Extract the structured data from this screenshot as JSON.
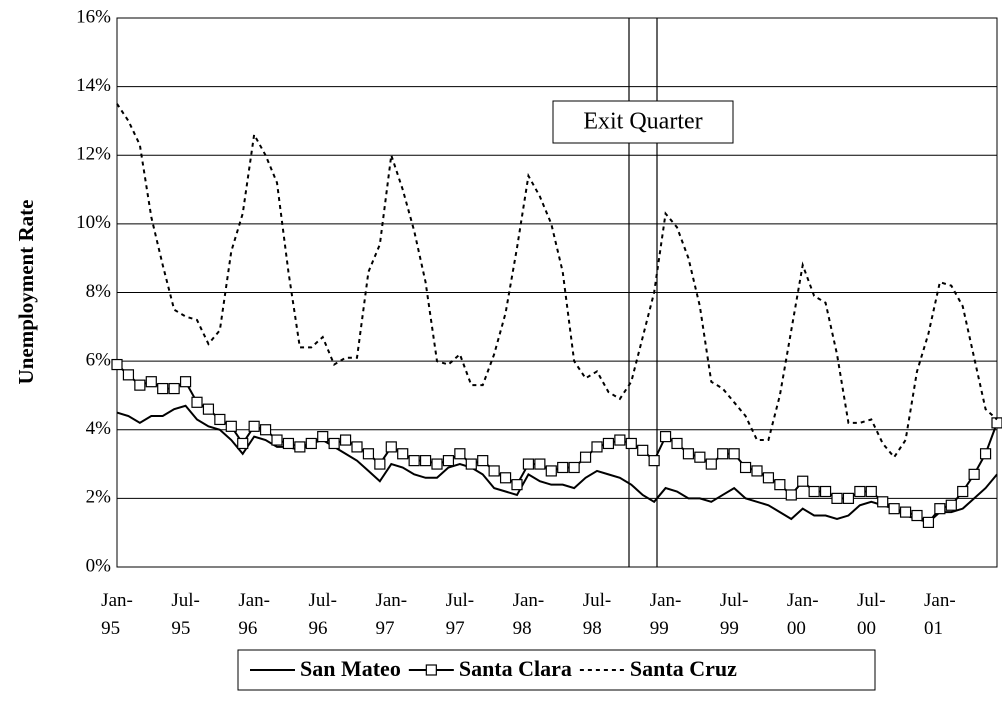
{
  "chart_data": {
    "type": "line",
    "y_label": "Unemployment Rate",
    "annotation": "Exit Quarter",
    "categories": [
      "Jan-95",
      null,
      null,
      null,
      null,
      null,
      "Jul-95",
      null,
      null,
      null,
      null,
      null,
      "Jan-96",
      null,
      null,
      null,
      null,
      null,
      "Jul-96",
      null,
      null,
      null,
      null,
      null,
      "Jan-97",
      null,
      null,
      null,
      null,
      null,
      "Jul-97",
      null,
      null,
      null,
      null,
      null,
      "Jan-98",
      null,
      null,
      null,
      null,
      null,
      "Jul-98",
      null,
      null,
      null,
      null,
      null,
      "Jan-99",
      null,
      null,
      null,
      null,
      null,
      "Jul-99",
      null,
      null,
      null,
      null,
      null,
      "Jan-00",
      null,
      null,
      null,
      null,
      null,
      "Jul-00",
      null,
      null,
      null,
      null,
      null,
      "Jan-01",
      null,
      null,
      null,
      null,
      null
    ],
    "ylim": [
      0,
      16
    ],
    "yticks": [
      {
        "value": 0,
        "label": "0%"
      },
      {
        "value": 2,
        "label": "2%"
      },
      {
        "value": 4,
        "label": "4%"
      },
      {
        "value": 6,
        "label": "6%"
      },
      {
        "value": 8,
        "label": "8%"
      },
      {
        "value": 10,
        "label": "10%"
      },
      {
        "value": 12,
        "label": "12%"
      },
      {
        "value": 14,
        "label": "14%"
      },
      {
        "value": 16,
        "label": "16%"
      }
    ],
    "grid": true,
    "legend": "bottom",
    "series": [
      {
        "name": "San Mateo",
        "color": "#000000",
        "dash": "solid",
        "marker": "none",
        "values": [
          4.5,
          4.4,
          4.2,
          4.4,
          4.4,
          4.6,
          4.7,
          4.3,
          4.1,
          4.0,
          3.7,
          3.3,
          3.8,
          3.7,
          3.5,
          3.5,
          3.4,
          3.6,
          3.7,
          3.5,
          3.3,
          3.1,
          2.8,
          2.5,
          3.0,
          2.9,
          2.7,
          2.6,
          2.6,
          2.9,
          3.0,
          2.9,
          2.7,
          2.3,
          2.2,
          2.1,
          2.7,
          2.5,
          2.4,
          2.4,
          2.3,
          2.6,
          2.8,
          2.7,
          2.6,
          2.4,
          2.1,
          1.9,
          2.3,
          2.2,
          2.0,
          2.0,
          1.9,
          2.1,
          2.3,
          2.0,
          1.9,
          1.8,
          1.6,
          1.4,
          1.7,
          1.5,
          1.5,
          1.4,
          1.5,
          1.8,
          1.9,
          1.8,
          1.7,
          1.5,
          1.4,
          1.3,
          1.6,
          1.6,
          1.7,
          2.0,
          2.3,
          2.7
        ]
      },
      {
        "name": "Santa Clara",
        "color": "#000000",
        "dash": "solid",
        "marker": "square",
        "values": [
          5.9,
          5.6,
          5.3,
          5.4,
          5.2,
          5.2,
          5.4,
          4.8,
          4.6,
          4.3,
          4.1,
          3.6,
          4.1,
          4.0,
          3.7,
          3.6,
          3.5,
          3.6,
          3.8,
          3.6,
          3.7,
          3.5,
          3.3,
          3.0,
          3.5,
          3.3,
          3.1,
          3.1,
          3.0,
          3.1,
          3.3,
          3.0,
          3.1,
          2.8,
          2.6,
          2.4,
          3.0,
          3.0,
          2.8,
          2.9,
          2.9,
          3.2,
          3.5,
          3.6,
          3.7,
          3.6,
          3.4,
          3.1,
          3.8,
          3.6,
          3.3,
          3.2,
          3.0,
          3.3,
          3.3,
          2.9,
          2.8,
          2.6,
          2.4,
          2.1,
          2.5,
          2.2,
          2.2,
          2.0,
          2.0,
          2.2,
          2.2,
          1.9,
          1.7,
          1.6,
          1.5,
          1.3,
          1.7,
          1.8,
          2.2,
          2.7,
          3.3,
          4.2
        ]
      },
      {
        "name": "Santa Cruz",
        "color": "#000000",
        "dash": "dot",
        "marker": "none",
        "values": [
          13.5,
          13.0,
          12.3,
          10.2,
          8.8,
          7.5,
          7.3,
          7.2,
          6.5,
          6.9,
          9.2,
          10.3,
          12.6,
          12.0,
          11.2,
          8.6,
          6.4,
          6.4,
          6.7,
          5.9,
          6.1,
          6.1,
          8.6,
          9.4,
          12.0,
          11.0,
          9.8,
          8.3,
          6.0,
          5.9,
          6.2,
          5.3,
          5.3,
          6.2,
          7.4,
          9.3,
          11.4,
          10.8,
          10.0,
          8.6,
          6.0,
          5.5,
          5.7,
          5.1,
          4.9,
          5.4,
          6.7,
          8.0,
          10.3,
          9.9,
          9.0,
          7.6,
          5.4,
          5.2,
          4.8,
          4.4,
          3.7,
          3.7,
          5.0,
          6.9,
          8.8,
          7.9,
          7.7,
          6.2,
          4.2,
          4.2,
          4.3,
          3.6,
          3.2,
          3.7,
          5.7,
          6.8,
          8.3,
          8.2,
          7.6,
          6.1,
          4.6,
          4.3
        ]
      }
    ]
  }
}
